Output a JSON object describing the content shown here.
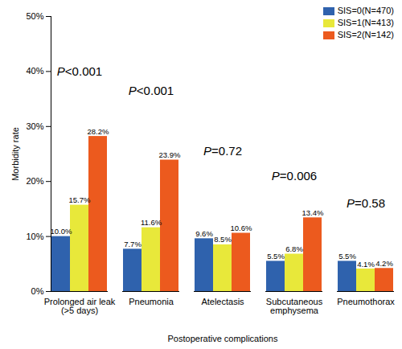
{
  "chart_data": {
    "type": "bar",
    "x_label": "Postoperative complications",
    "y_label": "Morbidity rate",
    "categories": [
      "Prolonged air leak (>5 days)",
      "Pneumonia",
      "Atelectasis",
      "Subcutaneous emphysema",
      "Pneumothorax"
    ],
    "series": [
      {
        "name": "SIS=0(N=470)",
        "color": "#2f62ad",
        "values": [
          10.0,
          7.7,
          9.6,
          5.5,
          5.5
        ],
        "value_labels": [
          "10.0%",
          "7.7%",
          "9.6%",
          "5.5%",
          "5.5%"
        ]
      },
      {
        "name": "SIS=1(N=413)",
        "color": "#e8e83a",
        "values": [
          15.7,
          11.6,
          8.5,
          6.8,
          4.1
        ],
        "value_labels": [
          "15.7%",
          "11.6%",
          "8.5%",
          "6.8%",
          "4.1%"
        ]
      },
      {
        "name": "SIS=2(N=142)",
        "color": "#ec5a1e",
        "values": [
          28.2,
          23.9,
          10.6,
          13.4,
          4.2
        ],
        "value_labels": [
          "28.2%",
          "23.9%",
          "10.6%",
          "13.4%",
          "4.2%"
        ]
      }
    ],
    "ylim": [
      0,
      50
    ],
    "yticks": [
      {
        "value": 0,
        "label": "0%"
      },
      {
        "value": 10,
        "label": "10%"
      },
      {
        "value": 20,
        "label": "20%"
      },
      {
        "value": 30,
        "label": "30%"
      },
      {
        "value": 40,
        "label": "40%"
      },
      {
        "value": 50,
        "label": "50%"
      }
    ],
    "grid": false,
    "legend": "top-right",
    "data_labels": true,
    "annotations": [
      {
        "text": "P<0.001",
        "category": "Prolonged air leak (>5 days)",
        "y": 40
      },
      {
        "text": "P<0.001",
        "category": "Pneumonia",
        "y": 36.5
      },
      {
        "text": "P=0.72",
        "category": "Atelectasis",
        "y": 25.5
      },
      {
        "text": "P=0.006",
        "category": "Subcutaneous emphysema",
        "y": 21
      },
      {
        "text": "P=0.58",
        "category": "Pneumothorax",
        "y": 16
      }
    ]
  }
}
